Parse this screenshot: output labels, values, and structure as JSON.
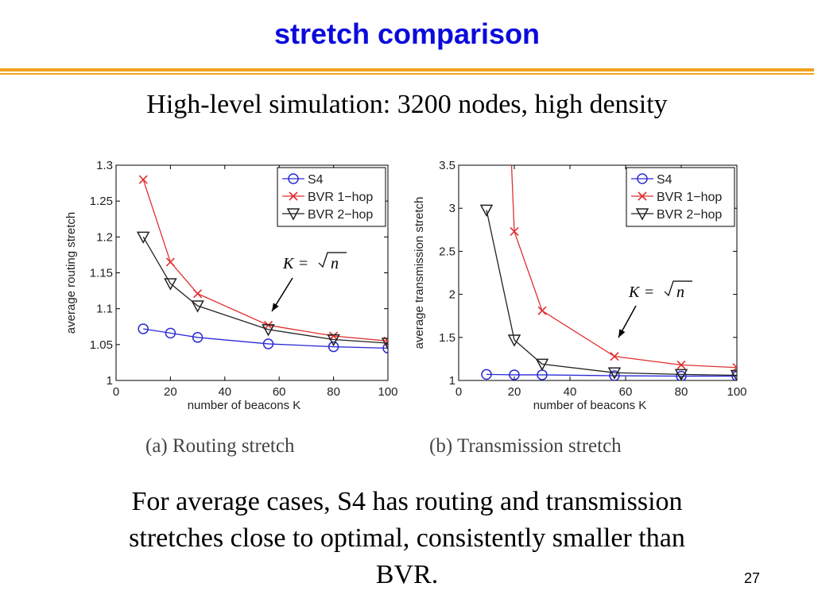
{
  "slide": {
    "title": "stretch comparison",
    "subtitle": "High-level simulation: 3200 nodes, high density",
    "body_lines": [
      "For average cases, S4 has routing and transmission",
      "stretches close to optimal, consistently smaller than",
      "BVR."
    ],
    "page_number": "27",
    "title_color": "#0a0adc",
    "rule_color": "#f2a21e"
  },
  "chart_data": [
    {
      "type": "line",
      "caption": "(a) Routing stretch",
      "xlabel": "number of beacons K",
      "ylabel": "average routing stretch",
      "xlim": [
        0,
        100
      ],
      "ylim": [
        1,
        1.3
      ],
      "xticks": [
        0,
        20,
        40,
        60,
        80,
        100
      ],
      "xtick_labels": [
        "0",
        "20",
        "40",
        "60",
        "80",
        "100"
      ],
      "yticks": [
        1,
        1.05,
        1.1,
        1.15,
        1.2,
        1.25,
        1.3
      ],
      "ytick_labels": [
        "1",
        "1.05",
        "1.1",
        "1.15",
        "1.2",
        "1.25",
        "1.3"
      ],
      "grid": false,
      "legend_position": "top-right",
      "annotation": {
        "text": "K = √n",
        "italic_parts": [
          "K",
          "n"
        ]
      },
      "series": [
        {
          "name": "S4",
          "color": "#2b2bd6",
          "marker": "circle",
          "x": [
            10,
            20,
            30,
            56,
            80,
            100
          ],
          "y": [
            1.072,
            1.066,
            1.06,
            1.051,
            1.047,
            1.045
          ]
        },
        {
          "name": "BVR 1−hop",
          "color": "#e03030",
          "marker": "x",
          "x": [
            10,
            20,
            30,
            56,
            80,
            100
          ],
          "y": [
            1.28,
            1.165,
            1.121,
            1.077,
            1.062,
            1.055
          ]
        },
        {
          "name": "BVR 2−hop",
          "color": "#222222",
          "marker": "triangle-down",
          "x": [
            10,
            20,
            30,
            56,
            80,
            100
          ],
          "y": [
            1.2,
            1.135,
            1.104,
            1.071,
            1.057,
            1.052
          ]
        }
      ]
    },
    {
      "type": "line",
      "caption": "(b) Transmission stretch",
      "xlabel": "number of beacons K",
      "ylabel": "average transmission stretch",
      "xlim": [
        0,
        100
      ],
      "ylim": [
        1,
        3.5
      ],
      "xticks": [
        0,
        20,
        40,
        60,
        80,
        100
      ],
      "xtick_labels": [
        "0",
        "20",
        "40",
        "60",
        "80",
        "100"
      ],
      "yticks": [
        1,
        1.5,
        2,
        2.5,
        3,
        3.5
      ],
      "ytick_labels": [
        "1",
        "1.5",
        "2",
        "2.5",
        "3",
        "3.5"
      ],
      "grid": false,
      "legend_position": "top-right",
      "annotation": {
        "text": "K = √n",
        "italic_parts": [
          "K",
          "n"
        ]
      },
      "series": [
        {
          "name": "S4",
          "color": "#2b2bd6",
          "marker": "circle",
          "x": [
            10,
            20,
            30,
            56,
            80,
            100
          ],
          "y": [
            1.07,
            1.065,
            1.065,
            1.055,
            1.05,
            1.05
          ]
        },
        {
          "name": "BVR 1−hop",
          "color": "#e03030",
          "marker": "x",
          "x": [
            19,
            20,
            30,
            56,
            80,
            100
          ],
          "y": [
            3.5,
            2.73,
            1.81,
            1.28,
            1.18,
            1.15
          ]
        },
        {
          "name": "BVR 2−hop",
          "color": "#222222",
          "marker": "triangle-down",
          "x": [
            10,
            20,
            30,
            56,
            80,
            100
          ],
          "y": [
            2.98,
            1.47,
            1.19,
            1.09,
            1.07,
            1.06
          ]
        }
      ]
    }
  ]
}
